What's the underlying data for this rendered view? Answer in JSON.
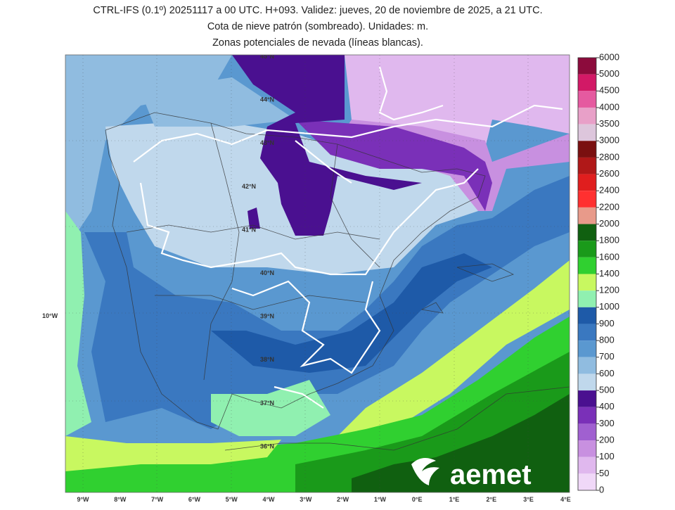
{
  "header": {
    "title_lines": [
      "CTRL-IFS (0.1º) 20251117 a 00 UTC. H+093. Validez: jueves, 20 de noviembre de 2025, a 21 UTC.",
      "Cota de nieve patrón (sombreado). Unidades: m.",
      "Zonas potenciales de nevada (líneas blancas)."
    ]
  },
  "map": {
    "lat_labels": [
      "45°N",
      "44°N",
      "43°N",
      "42°N",
      "41°N",
      "40°N",
      "39°N",
      "38°N",
      "37°N",
      "36°N"
    ],
    "west_label": "10°W",
    "lon_labels": [
      "9°W",
      "8°W",
      "7°W",
      "6°W",
      "5°W",
      "4°W",
      "3°W",
      "2°W",
      "1°W",
      "0°E",
      "1°E",
      "2°E",
      "3°E",
      "4°E"
    ]
  },
  "colorbar": {
    "ticks": [
      6000,
      5000,
      4500,
      4000,
      3500,
      3000,
      2800,
      2600,
      2400,
      2200,
      2000,
      1800,
      1600,
      1400,
      1200,
      1000,
      900,
      800,
      700,
      600,
      500,
      400,
      300,
      200,
      100,
      50,
      0
    ],
    "colors": [
      "#8c0b3c",
      "#d21966",
      "#e55aa0",
      "#e8a0c8",
      "#ddc6dc",
      "#7a1010",
      "#b01818",
      "#e01e1e",
      "#ff3030",
      "#e89a8a",
      "#106010",
      "#1a9a1a",
      "#30d030",
      "#c8f860",
      "#90f0b0",
      "#1e5aa8",
      "#3a78c0",
      "#5a98d0",
      "#90bce0",
      "#c0d8ec",
      "#4a1090",
      "#7a30b8",
      "#a060d0",
      "#c890e0",
      "#e0b8ee",
      "#f0d8f8"
    ]
  },
  "logo": "aemet"
}
